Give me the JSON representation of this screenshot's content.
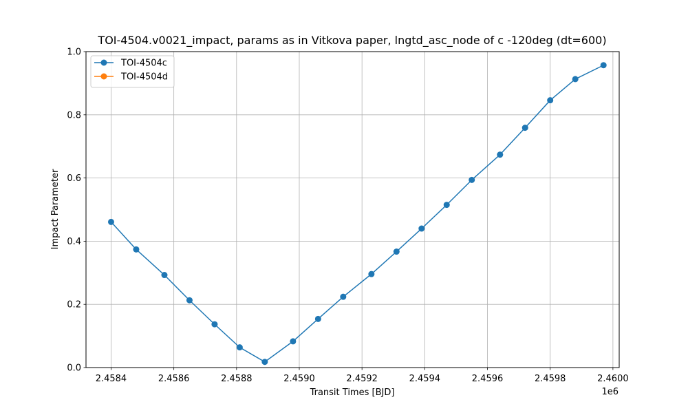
{
  "chart_data": {
    "type": "line",
    "title": "TOI-4504.v0021_impact, params as in Vitkova paper, lngtd_asc_node of c -120deg (dt=600)",
    "xlabel": "Transit Times [BJD]",
    "ylabel": "Impact Parameter",
    "x_offset_label": "1e6",
    "xlim": [
      2.45832,
      2.46002
    ],
    "ylim": [
      0.0,
      1.0
    ],
    "x_ticks": [
      2.4584,
      2.4586,
      2.4588,
      2.459,
      2.4592,
      2.4594,
      2.4596,
      2.4598,
      2.46
    ],
    "x_tick_labels": [
      "2.4584",
      "2.4586",
      "2.4588",
      "2.4590",
      "2.4592",
      "2.4594",
      "2.4596",
      "2.4598",
      "2.4600"
    ],
    "y_ticks": [
      0.0,
      0.2,
      0.4,
      0.6,
      0.8,
      1.0
    ],
    "y_tick_labels": [
      "0.0",
      "0.2",
      "0.4",
      "0.6",
      "0.8",
      "1.0"
    ],
    "grid": true,
    "legend_position": "top-left",
    "series": [
      {
        "name": "TOI-4504c",
        "color": "#1f77b4",
        "marker": "circle",
        "x": [
          2.4584,
          2.45848,
          2.45857,
          2.45865,
          2.45873,
          2.45881,
          2.45889,
          2.45898,
          2.45906,
          2.45914,
          2.45923,
          2.45931,
          2.45939,
          2.45947,
          2.45955,
          2.45964,
          2.45972,
          2.4598,
          2.45988,
          2.45997
        ],
        "y": [
          0.461,
          0.374,
          0.293,
          0.213,
          0.137,
          0.064,
          0.018,
          0.083,
          0.154,
          0.224,
          0.296,
          0.367,
          0.44,
          0.515,
          0.594,
          0.674,
          0.759,
          0.846,
          0.913,
          0.957
        ]
      },
      {
        "name": "TOI-4504d",
        "color": "#ff7f0e",
        "marker": "circle",
        "x": [],
        "y": []
      }
    ]
  }
}
